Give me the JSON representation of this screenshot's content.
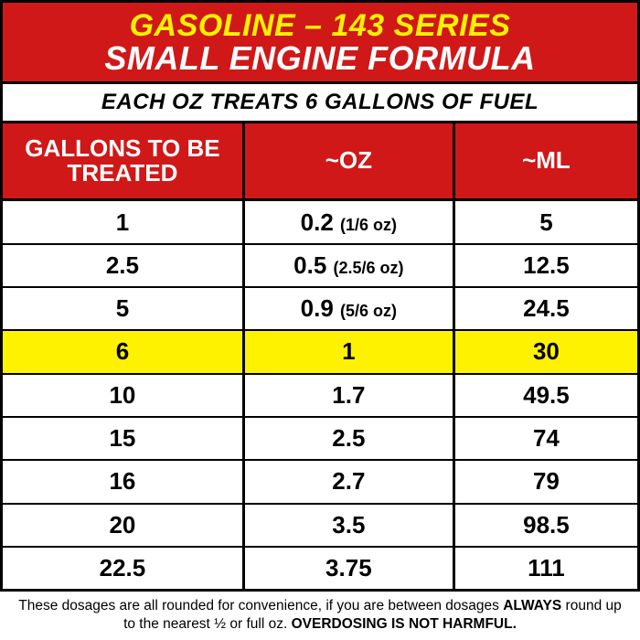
{
  "colors": {
    "red": "#d01818",
    "yellow": "#fff200",
    "highlight": "#fff200",
    "white": "#ffffff",
    "black": "#000000"
  },
  "header": {
    "bg": "#d01818",
    "line1": {
      "text": "GASOLINE – 143 SERIES",
      "color": "#fff200",
      "fontsize": 34
    },
    "line2": {
      "text": "SMALL ENGINE FORMULA",
      "color": "#ffffff",
      "fontsize": 36
    }
  },
  "subheader": {
    "text": "EACH OZ TREATS 6 GALLONS OF FUEL",
    "fontsize": 24
  },
  "table": {
    "header_bg": "#d01818",
    "columns": [
      {
        "label": "GALLONS TO BE TREATED",
        "width": "38%"
      },
      {
        "label": "~OZ",
        "width": "33%"
      },
      {
        "label": "~ML",
        "width": "29%"
      }
    ],
    "rows": [
      {
        "gallons": "1",
        "oz": "0.2",
        "oz_note": "(1/6 oz)",
        "ml": "5",
        "highlight": false
      },
      {
        "gallons": "2.5",
        "oz": "0.5",
        "oz_note": "(2.5/6 oz)",
        "ml": "12.5",
        "highlight": false
      },
      {
        "gallons": "5",
        "oz": "0.9",
        "oz_note": "(5/6 oz)",
        "ml": "24.5",
        "highlight": false
      },
      {
        "gallons": "6",
        "oz": "1",
        "oz_note": "",
        "ml": "30",
        "highlight": true
      },
      {
        "gallons": "10",
        "oz": "1.7",
        "oz_note": "",
        "ml": "49.5",
        "highlight": false
      },
      {
        "gallons": "15",
        "oz": "2.5",
        "oz_note": "",
        "ml": "74",
        "highlight": false
      },
      {
        "gallons": "16",
        "oz": "2.7",
        "oz_note": "",
        "ml": "79",
        "highlight": false
      },
      {
        "gallons": "20",
        "oz": "3.5",
        "oz_note": "",
        "ml": "98.5",
        "highlight": false
      },
      {
        "gallons": "22.5",
        "oz": "3.75",
        "oz_note": "",
        "ml": "111",
        "highlight": false
      }
    ]
  },
  "footer": {
    "part1": "These dosages are all rounded for convenience, if you are between dosages ",
    "bold1": "ALWAYS",
    "part2": " round up to the nearest ½ or full oz. ",
    "bold2": "OVERDOSING IS NOT HARMFUL."
  }
}
